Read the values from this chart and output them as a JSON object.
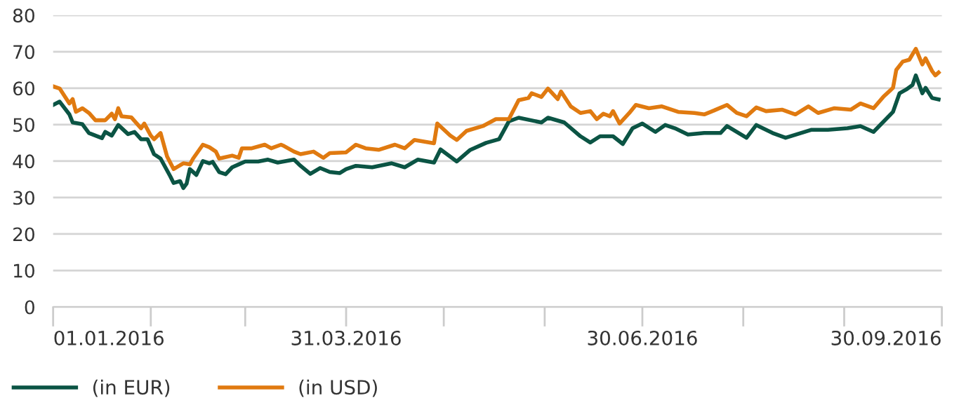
{
  "chart_data": {
    "type": "line",
    "ylim": [
      0,
      80
    ],
    "yticks": [
      0,
      10,
      20,
      30,
      40,
      50,
      60,
      70,
      80
    ],
    "xlim": [
      "2016-01-01",
      "2016-09-30"
    ],
    "xticks": [
      {
        "value": "2016-01-01",
        "label": "01.01.2016"
      },
      {
        "value": "2016-01-31",
        "label": null
      },
      {
        "value": "2016-02-29",
        "label": null
      },
      {
        "value": "2016-03-31",
        "label": "31.03.2016"
      },
      {
        "value": "2016-04-30",
        "label": null
      },
      {
        "value": "2016-05-31",
        "label": null
      },
      {
        "value": "2016-06-30",
        "label": "30.06.2016"
      },
      {
        "value": "2016-07-31",
        "label": null
      },
      {
        "value": "2016-08-31",
        "label": null
      },
      {
        "value": "2016-09-30",
        "label": "30.09.2016"
      }
    ],
    "grid": "y",
    "legend": "bottom left",
    "marker": "none",
    "line_style": "solid",
    "series": [
      {
        "name": "(in EUR)",
        "color": "#0b5444",
        "x": [
          "2016-01-01",
          "2016-01-03",
          "2016-01-06",
          "2016-01-07",
          "2016-01-10",
          "2016-01-12",
          "2016-01-16",
          "2016-01-17",
          "2016-01-19",
          "2016-01-21",
          "2016-01-24",
          "2016-01-26",
          "2016-01-28",
          "2016-01-30",
          "2016-02-01",
          "2016-02-03",
          "2016-02-06",
          "2016-02-07",
          "2016-02-09",
          "2016-02-10",
          "2016-02-11",
          "2016-02-12",
          "2016-02-14",
          "2016-02-16",
          "2016-02-18",
          "2016-02-19",
          "2016-02-21",
          "2016-02-23",
          "2016-02-25",
          "2016-02-27",
          "2016-02-29",
          "2016-03-04",
          "2016-03-07",
          "2016-03-10",
          "2016-03-15",
          "2016-03-17",
          "2016-03-20",
          "2016-03-23",
          "2016-03-26",
          "2016-03-29",
          "2016-03-31",
          "2016-04-03",
          "2016-04-08",
          "2016-04-14",
          "2016-04-18",
          "2016-04-22",
          "2016-04-27",
          "2016-04-29",
          "2016-05-04",
          "2016-05-08",
          "2016-05-13",
          "2016-05-17",
          "2016-05-20",
          "2016-05-23",
          "2016-05-30",
          "2016-06-01",
          "2016-06-06",
          "2016-06-11",
          "2016-06-14",
          "2016-06-17",
          "2016-06-21",
          "2016-06-24",
          "2016-06-27",
          "2016-06-30",
          "2016-07-04",
          "2016-07-07",
          "2016-07-10",
          "2016-07-14",
          "2016-07-19",
          "2016-07-24",
          "2016-07-26",
          "2016-08-01",
          "2016-08-04",
          "2016-08-09",
          "2016-08-13",
          "2016-08-21",
          "2016-08-26",
          "2016-09-01",
          "2016-09-05",
          "2016-09-09",
          "2016-09-15",
          "2016-09-17",
          "2016-09-19",
          "2016-09-21",
          "2016-09-22",
          "2016-09-24",
          "2016-09-25",
          "2016-09-27",
          "2016-09-29"
        ],
        "values": [
          55.4,
          56.3,
          52.8,
          50.6,
          50.1,
          47.7,
          46.3,
          48,
          47,
          49.9,
          47.4,
          48,
          46,
          46,
          41.9,
          40.7,
          35.8,
          34,
          34.5,
          32.6,
          33.8,
          37.8,
          36.2,
          40,
          39.4,
          39.8,
          37,
          36.4,
          38.3,
          39.1,
          39.9,
          39.9,
          40.4,
          39.6,
          40.4,
          38.7,
          36.5,
          38.1,
          37,
          36.7,
          37.8,
          38.7,
          38.3,
          39.4,
          38.3,
          40.4,
          39.6,
          43.2,
          39.9,
          43,
          45,
          46,
          50.9,
          51.9,
          50.6,
          51.9,
          50.6,
          46.8,
          45.1,
          46.8,
          46.8,
          44.7,
          49,
          50.3,
          48,
          49.9,
          49,
          47.3,
          47.7,
          47.7,
          49.6,
          46.4,
          49.9,
          47.7,
          46.4,
          48.6,
          48.6,
          49,
          49.6,
          48,
          53.5,
          58.6,
          59.6,
          60.9,
          63.5,
          58.6,
          60.1,
          57.3,
          56.9
        ]
      },
      {
        "name": "(in USD)",
        "color": "#e07a10",
        "x": [
          "2016-01-01",
          "2016-01-03",
          "2016-01-06",
          "2016-01-07",
          "2016-01-08",
          "2016-01-10",
          "2016-01-12",
          "2016-01-14",
          "2016-01-17",
          "2016-01-19",
          "2016-01-20",
          "2016-01-21",
          "2016-01-22",
          "2016-01-25",
          "2016-01-28",
          "2016-01-29",
          "2016-01-31",
          "2016-02-01",
          "2016-02-03",
          "2016-02-05",
          "2016-02-07",
          "2016-02-10",
          "2016-02-12",
          "2016-02-13",
          "2016-02-16",
          "2016-02-18",
          "2016-02-20",
          "2016-02-21",
          "2016-02-25",
          "2016-02-27",
          "2016-02-28",
          "2016-03-02",
          "2016-03-06",
          "2016-03-08",
          "2016-03-11",
          "2016-03-12",
          "2016-03-15",
          "2016-03-17",
          "2016-03-21",
          "2016-03-24",
          "2016-03-26",
          "2016-03-31",
          "2016-04-03",
          "2016-04-06",
          "2016-04-10",
          "2016-04-15",
          "2016-04-18",
          "2016-04-21",
          "2016-04-27",
          "2016-04-28",
          "2016-05-02",
          "2016-05-04",
          "2016-05-07",
          "2016-05-12",
          "2016-05-16",
          "2016-05-20",
          "2016-05-23",
          "2016-05-26",
          "2016-05-27",
          "2016-05-30",
          "2016-06-01",
          "2016-06-04",
          "2016-06-05",
          "2016-06-08",
          "2016-06-11",
          "2016-06-14",
          "2016-06-16",
          "2016-06-18",
          "2016-06-20",
          "2016-06-21",
          "2016-06-23",
          "2016-06-26",
          "2016-06-28",
          "2016-07-02",
          "2016-07-06",
          "2016-07-11",
          "2016-07-16",
          "2016-07-19",
          "2016-07-21",
          "2016-07-26",
          "2016-07-29",
          "2016-08-01",
          "2016-08-04",
          "2016-08-07",
          "2016-08-12",
          "2016-08-16",
          "2016-08-20",
          "2016-08-23",
          "2016-08-28",
          "2016-09-02",
          "2016-09-05",
          "2016-09-09",
          "2016-09-12",
          "2016-09-15",
          "2016-09-16",
          "2016-09-18",
          "2016-09-20",
          "2016-09-22",
          "2016-09-24",
          "2016-09-25",
          "2016-09-27",
          "2016-09-28",
          "2016-09-29"
        ],
        "values": [
          60.5,
          59.9,
          55.8,
          57,
          53.5,
          54.5,
          53.2,
          51.2,
          51.2,
          53,
          51.5,
          54.5,
          52.3,
          52,
          49,
          50.3,
          47,
          46,
          47.7,
          41.3,
          37.8,
          39.4,
          39.1,
          40.7,
          44.5,
          43.8,
          42.6,
          40.7,
          41.5,
          40.9,
          43.5,
          43.5,
          44.5,
          43.5,
          44.5,
          44.1,
          42.6,
          41.9,
          42.6,
          40.9,
          42.2,
          42.4,
          44.5,
          43.5,
          43.1,
          44.5,
          43.5,
          45.8,
          44.9,
          50.3,
          47,
          45.8,
          48.3,
          49.6,
          51.5,
          51.5,
          56.7,
          57.3,
          58.6,
          57.6,
          59.9,
          57,
          59.1,
          55,
          53.2,
          53.7,
          51.5,
          53,
          52.3,
          53.7,
          50.3,
          53.2,
          55.4,
          54.5,
          55,
          53.5,
          53.2,
          52.8,
          53.5,
          55.4,
          53.2,
          52.3,
          54.7,
          53.7,
          54.1,
          52.8,
          55,
          53.2,
          54.5,
          54.1,
          55.8,
          54.5,
          57.6,
          60.1,
          65,
          67.3,
          67.8,
          70.8,
          66.5,
          68.2,
          64.7,
          63.5,
          64.3
        ]
      }
    ]
  }
}
